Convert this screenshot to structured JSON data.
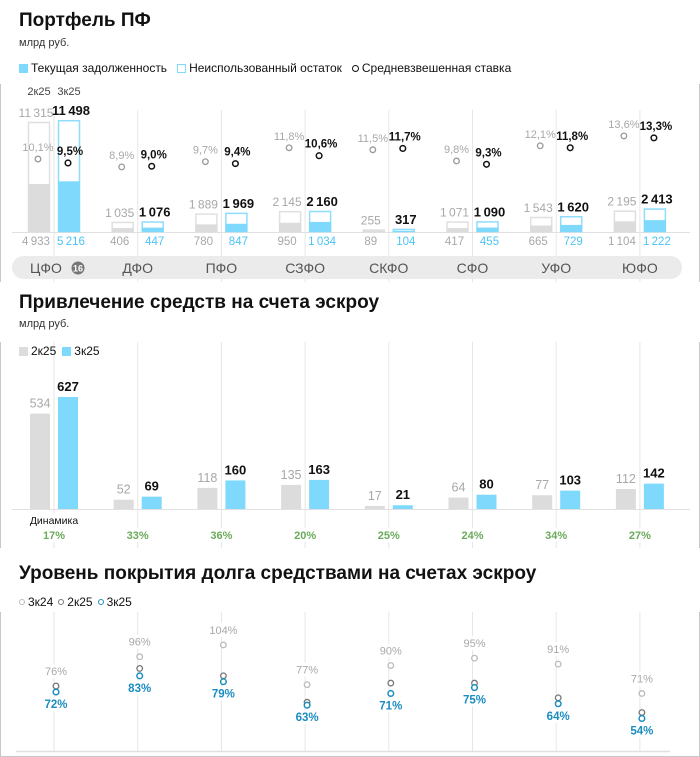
{
  "colors": {
    "current": "#7fd9fc",
    "unused_border": "#8fdcfc",
    "gray": "#dcdcdc",
    "gray_text": "#a8a8a8",
    "blue_text": "#4cc3f5",
    "cov_blue": "#1a8cc0",
    "green": "#6aaa5a",
    "grid": "#e6e6e6"
  },
  "regions": [
    "ЦФО",
    "ДФО",
    "ПФО",
    "СЗФО",
    "СКФО",
    "СФО",
    "УФО",
    "ЮФО"
  ],
  "region_badge": "16",
  "chart_data": [
    {
      "type": "bar",
      "title": "Портфель ПФ",
      "subtitle": "млрд руб.",
      "legend": [
        "Текущая задолженность",
        "Неиспользованный остаток",
        "Средневзвешенная ставка"
      ],
      "period_labels": [
        "2к25",
        "3к25"
      ],
      "limit_2k25": [
        11315,
        1035,
        1889,
        2145,
        255,
        1071,
        1543,
        2195
      ],
      "limit_3k25": [
        11498,
        1076,
        1969,
        2160,
        317,
        1090,
        1620,
        2413
      ],
      "debt_2k25": [
        4933,
        406,
        780,
        950,
        89,
        417,
        665,
        1104
      ],
      "debt_3k25": [
        5216,
        447,
        847,
        1034,
        104,
        455,
        729,
        1222
      ],
      "rate_2k25": [
        10.1,
        8.9,
        9.7,
        11.8,
        11.5,
        9.8,
        12.1,
        13.6
      ],
      "rate_3k25": [
        9.5,
        9.0,
        9.4,
        10.6,
        11.7,
        9.3,
        11.8,
        13.3
      ]
    },
    {
      "type": "bar",
      "title": "Привлечение средств на счета эскроу",
      "subtitle": "млрд руб.",
      "legend": [
        "2к25",
        "3к25"
      ],
      "series": [
        {
          "name": "2к25",
          "values": [
            534,
            52,
            118,
            135,
            17,
            64,
            77,
            112
          ]
        },
        {
          "name": "3к25",
          "values": [
            627,
            69,
            160,
            163,
            21,
            80,
            103,
            142
          ]
        }
      ],
      "dynamics_label": "Динамика",
      "dynamics": [
        "17%",
        "33%",
        "36%",
        "20%",
        "25%",
        "24%",
        "34%",
        "27%"
      ]
    },
    {
      "type": "scatter",
      "title": "Уровень покрытия долга средствами на счетах эскроу",
      "legend": [
        "3к24",
        "2к25",
        "3к25"
      ],
      "series": [
        {
          "name": "3к24",
          "values": [
            76,
            96,
            104,
            77,
            90,
            95,
            91,
            71
          ]
        },
        {
          "name": "2к25",
          "values": [
            74,
            86,
            81,
            63,
            76,
            76,
            66,
            56
          ]
        },
        {
          "name": "3к25",
          "values": [
            72,
            83,
            79,
            63,
            71,
            75,
            64,
            54
          ]
        }
      ]
    }
  ]
}
